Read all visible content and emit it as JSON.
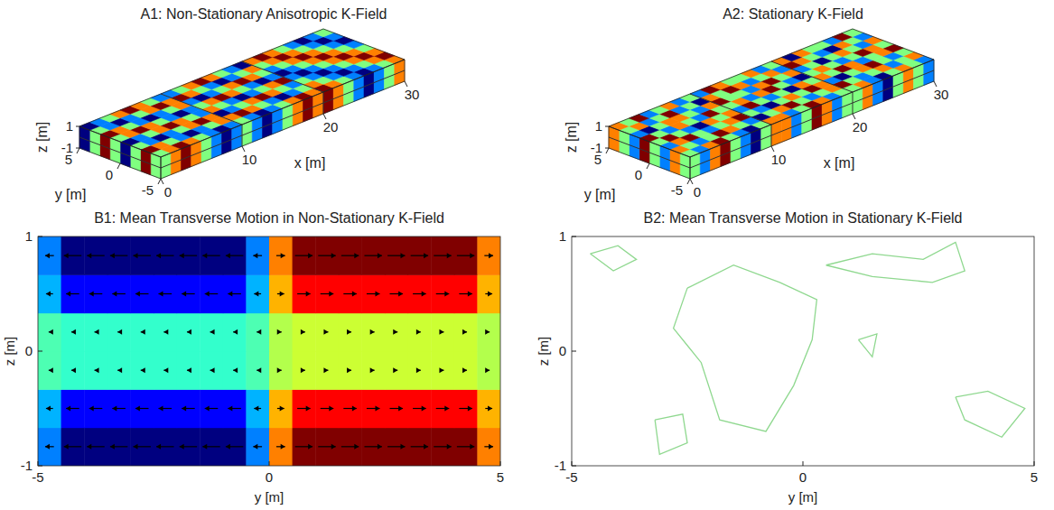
{
  "chart_data": [
    {
      "type": "surface3d",
      "title": "A1: Non-Stationary Anisotropic K-Field",
      "xlabel": "x [m]",
      "ylabel": "y [m]",
      "zlabel": "z [m]",
      "xlim": [
        0,
        30
      ],
      "ylim": [
        -5,
        5
      ],
      "zlim": [
        -1,
        1
      ],
      "xticks": [
        0,
        10,
        20,
        30
      ],
      "yticks": [
        -5,
        0,
        5
      ],
      "zticks": [
        -1,
        1
      ],
      "x_slices": [
        10,
        20
      ],
      "z_slices": [
        0
      ],
      "color_range": [
        -2,
        2
      ],
      "cells": [
        [
          0,
          1,
          2,
          1,
          0,
          -1,
          -2,
          -1,
          0,
          -1,
          -2,
          -1,
          0,
          1,
          2,
          1,
          2,
          1,
          0,
          -1,
          -2,
          -1,
          0,
          1
        ],
        [
          2,
          1,
          0,
          -1,
          -2,
          -1,
          0,
          1,
          1,
          2,
          1,
          0,
          -1,
          -2,
          -1,
          0,
          1,
          0,
          -1,
          -2,
          -1,
          0,
          1,
          2
        ],
        [
          0,
          -1,
          -2,
          -1,
          0,
          1,
          2,
          1,
          -2,
          -1,
          0,
          1,
          2,
          1,
          0,
          -1,
          0,
          -1,
          -2,
          -1,
          0,
          1,
          2,
          1
        ],
        [
          -2,
          -1,
          0,
          1,
          2,
          1,
          0,
          -1,
          1,
          0,
          -1,
          -2,
          -1,
          0,
          1,
          2,
          -1,
          -2,
          -1,
          0,
          1,
          2,
          1,
          0
        ],
        [
          0,
          1,
          2,
          1,
          0,
          -1,
          -2,
          -1,
          0,
          1,
          2,
          1,
          0,
          -1,
          -2,
          -1,
          -2,
          -1,
          0,
          1,
          2,
          1,
          0,
          -1
        ],
        [
          2,
          1,
          0,
          -1,
          -2,
          -1,
          0,
          1,
          -1,
          -2,
          -1,
          0,
          1,
          2,
          1,
          0,
          -1,
          0,
          1,
          2,
          1,
          0,
          -1,
          -2
        ],
        [
          0,
          -1,
          -2,
          -1,
          0,
          1,
          2,
          1,
          2,
          1,
          0,
          -1,
          -2,
          -1,
          0,
          1,
          0,
          1,
          2,
          1,
          0,
          -1,
          -2,
          -1
        ],
        [
          -2,
          -1,
          0,
          1,
          2,
          1,
          0,
          -1,
          -1,
          0,
          1,
          2,
          1,
          0,
          -1,
          -2,
          1,
          2,
          1,
          0,
          -1,
          -2,
          -1,
          0
        ]
      ]
    },
    {
      "type": "surface3d",
      "title": "A2: Stationary K-Field",
      "xlabel": "x [m]",
      "ylabel": "y [m]",
      "zlabel": "z [m]",
      "xlim": [
        0,
        30
      ],
      "ylim": [
        -5,
        5
      ],
      "zlim": [
        -1,
        1
      ],
      "xticks": [
        0,
        10,
        20,
        30
      ],
      "yticks": [
        -5,
        0,
        5
      ],
      "zticks": [
        -1,
        1
      ],
      "x_slices": [
        10,
        20
      ],
      "z_slices": [
        0
      ],
      "color_range": [
        -2,
        2
      ],
      "cells": [
        [
          0,
          -1,
          1,
          2,
          0,
          -1,
          -2,
          0,
          1,
          1,
          -1,
          0,
          2,
          1,
          -1,
          0,
          0,
          1,
          -1,
          -2,
          0,
          1,
          0,
          -1
        ],
        [
          1,
          0,
          -1,
          0,
          2,
          1,
          0,
          -1,
          -2,
          0,
          1,
          2,
          0,
          -1,
          0,
          1,
          2,
          0,
          -1,
          0,
          1,
          -1,
          0,
          1
        ],
        [
          -1,
          1,
          2,
          0,
          -1,
          0,
          1,
          2,
          0,
          -1,
          -2,
          0,
          1,
          0,
          2,
          1,
          -1,
          -2,
          0,
          1,
          2,
          0,
          -1,
          0
        ],
        [
          0,
          2,
          0,
          -1,
          -2,
          1,
          0,
          1,
          -1,
          2,
          0,
          -1,
          0,
          -2,
          1,
          0,
          1,
          0,
          2,
          1,
          -1,
          0,
          1,
          2
        ],
        [
          2,
          0,
          -1,
          1,
          0,
          -1,
          2,
          0,
          0,
          1,
          -1,
          1,
          2,
          0,
          -1,
          -2,
          0,
          1,
          0,
          -1,
          0,
          2,
          1,
          0
        ],
        [
          -1,
          -2,
          0,
          1,
          1,
          0,
          -1,
          1,
          2,
          0,
          0,
          -1,
          1,
          2,
          0,
          1,
          -1,
          0,
          -2,
          0,
          1,
          0,
          -1,
          1
        ],
        [
          0,
          1,
          -1,
          0,
          2,
          -1,
          0,
          -2,
          1,
          0,
          2,
          1,
          -1,
          0,
          1,
          -1,
          2,
          1,
          0,
          -1,
          -2,
          1,
          0,
          -1
        ],
        [
          1,
          0,
          2,
          -1,
          0,
          1,
          -1,
          0,
          -1,
          2,
          1,
          0,
          0,
          1,
          -1,
          0,
          1,
          -2,
          1,
          0,
          0,
          -1,
          2,
          0
        ]
      ]
    },
    {
      "type": "heatmap",
      "title": "B1: Mean Transverse Motion in Non-Stationary K-Field",
      "xlabel": "y [m]",
      "ylabel": "z [m]",
      "xlim": [
        -5,
        5
      ],
      "ylim": [
        -1,
        1
      ],
      "xticks": [
        -5,
        0,
        5
      ],
      "yticks": [
        -1,
        0,
        1
      ],
      "color_range": [
        -2,
        2
      ],
      "cells": [
        [
          -1,
          -2,
          -2,
          -2,
          -2,
          -2,
          -2,
          -2,
          -2,
          -1,
          1,
          2,
          2,
          2,
          2,
          2,
          2,
          2,
          2,
          1
        ],
        [
          -0.8,
          -1.5,
          -1.5,
          -1.5,
          -1.5,
          -1.5,
          -1.5,
          -1.5,
          -1.5,
          -0.8,
          0.8,
          1.5,
          1.5,
          1.5,
          1.5,
          1.5,
          1.5,
          1.5,
          1.5,
          0.8
        ],
        [
          -0.2,
          -0.3,
          -0.3,
          -0.3,
          -0.3,
          -0.3,
          -0.3,
          -0.3,
          -0.3,
          -0.2,
          0.2,
          0.3,
          0.3,
          0.3,
          0.3,
          0.3,
          0.3,
          0.3,
          0.3,
          0.2
        ],
        [
          -0.2,
          -0.3,
          -0.3,
          -0.3,
          -0.3,
          -0.3,
          -0.3,
          -0.3,
          -0.3,
          -0.2,
          0.2,
          0.3,
          0.3,
          0.3,
          0.3,
          0.3,
          0.3,
          0.3,
          0.3,
          0.2
        ],
        [
          -0.8,
          -1.5,
          -1.5,
          -1.5,
          -1.5,
          -1.5,
          -1.5,
          -1.5,
          -1.5,
          -0.8,
          0.8,
          1.5,
          1.5,
          1.5,
          1.5,
          1.5,
          1.5,
          1.5,
          1.5,
          0.8
        ],
        [
          -1,
          -2,
          -2,
          -2,
          -2,
          -2,
          -2,
          -2,
          -2,
          -1,
          1,
          2,
          2,
          2,
          2,
          2,
          2,
          2,
          2,
          1
        ]
      ]
    },
    {
      "type": "contour",
      "title": "B2: Mean Transverse Motion in Stationary K-Field",
      "xlabel": "y [m]",
      "ylabel": "z [m]",
      "xlim": [
        -5,
        5
      ],
      "ylim": [
        -1,
        1
      ],
      "xticks": [
        -5,
        0,
        5
      ],
      "yticks": [
        -1,
        0,
        1
      ],
      "color": "#8fd88f",
      "contours": [
        [
          [
            -4.6,
            0.85
          ],
          [
            -4.0,
            0.92
          ],
          [
            -3.6,
            0.8
          ],
          [
            -4.1,
            0.7
          ],
          [
            -4.6,
            0.85
          ]
        ],
        [
          [
            -2.5,
            0.55
          ],
          [
            -1.5,
            0.75
          ],
          [
            -0.5,
            0.6
          ],
          [
            0.3,
            0.45
          ],
          [
            0.2,
            0.1
          ],
          [
            -0.2,
            -0.3
          ],
          [
            -0.8,
            -0.7
          ],
          [
            -1.8,
            -0.6
          ],
          [
            -2.2,
            -0.1
          ],
          [
            -2.8,
            0.2
          ],
          [
            -2.5,
            0.55
          ]
        ],
        [
          [
            0.5,
            0.75
          ],
          [
            1.5,
            0.85
          ],
          [
            2.6,
            0.8
          ],
          [
            3.3,
            0.95
          ],
          [
            3.5,
            0.7
          ],
          [
            2.8,
            0.6
          ],
          [
            1.5,
            0.65
          ],
          [
            0.5,
            0.75
          ]
        ],
        [
          [
            3.3,
            -0.4
          ],
          [
            4.0,
            -0.35
          ],
          [
            4.8,
            -0.5
          ],
          [
            4.3,
            -0.75
          ],
          [
            3.5,
            -0.6
          ],
          [
            3.3,
            -0.4
          ]
        ],
        [
          [
            -3.2,
            -0.6
          ],
          [
            -2.6,
            -0.55
          ],
          [
            -2.5,
            -0.8
          ],
          [
            -3.1,
            -0.9
          ],
          [
            -3.2,
            -0.6
          ]
        ],
        [
          [
            1.2,
            0.1
          ],
          [
            1.6,
            0.15
          ],
          [
            1.5,
            -0.05
          ],
          [
            1.2,
            0.1
          ]
        ]
      ]
    }
  ]
}
